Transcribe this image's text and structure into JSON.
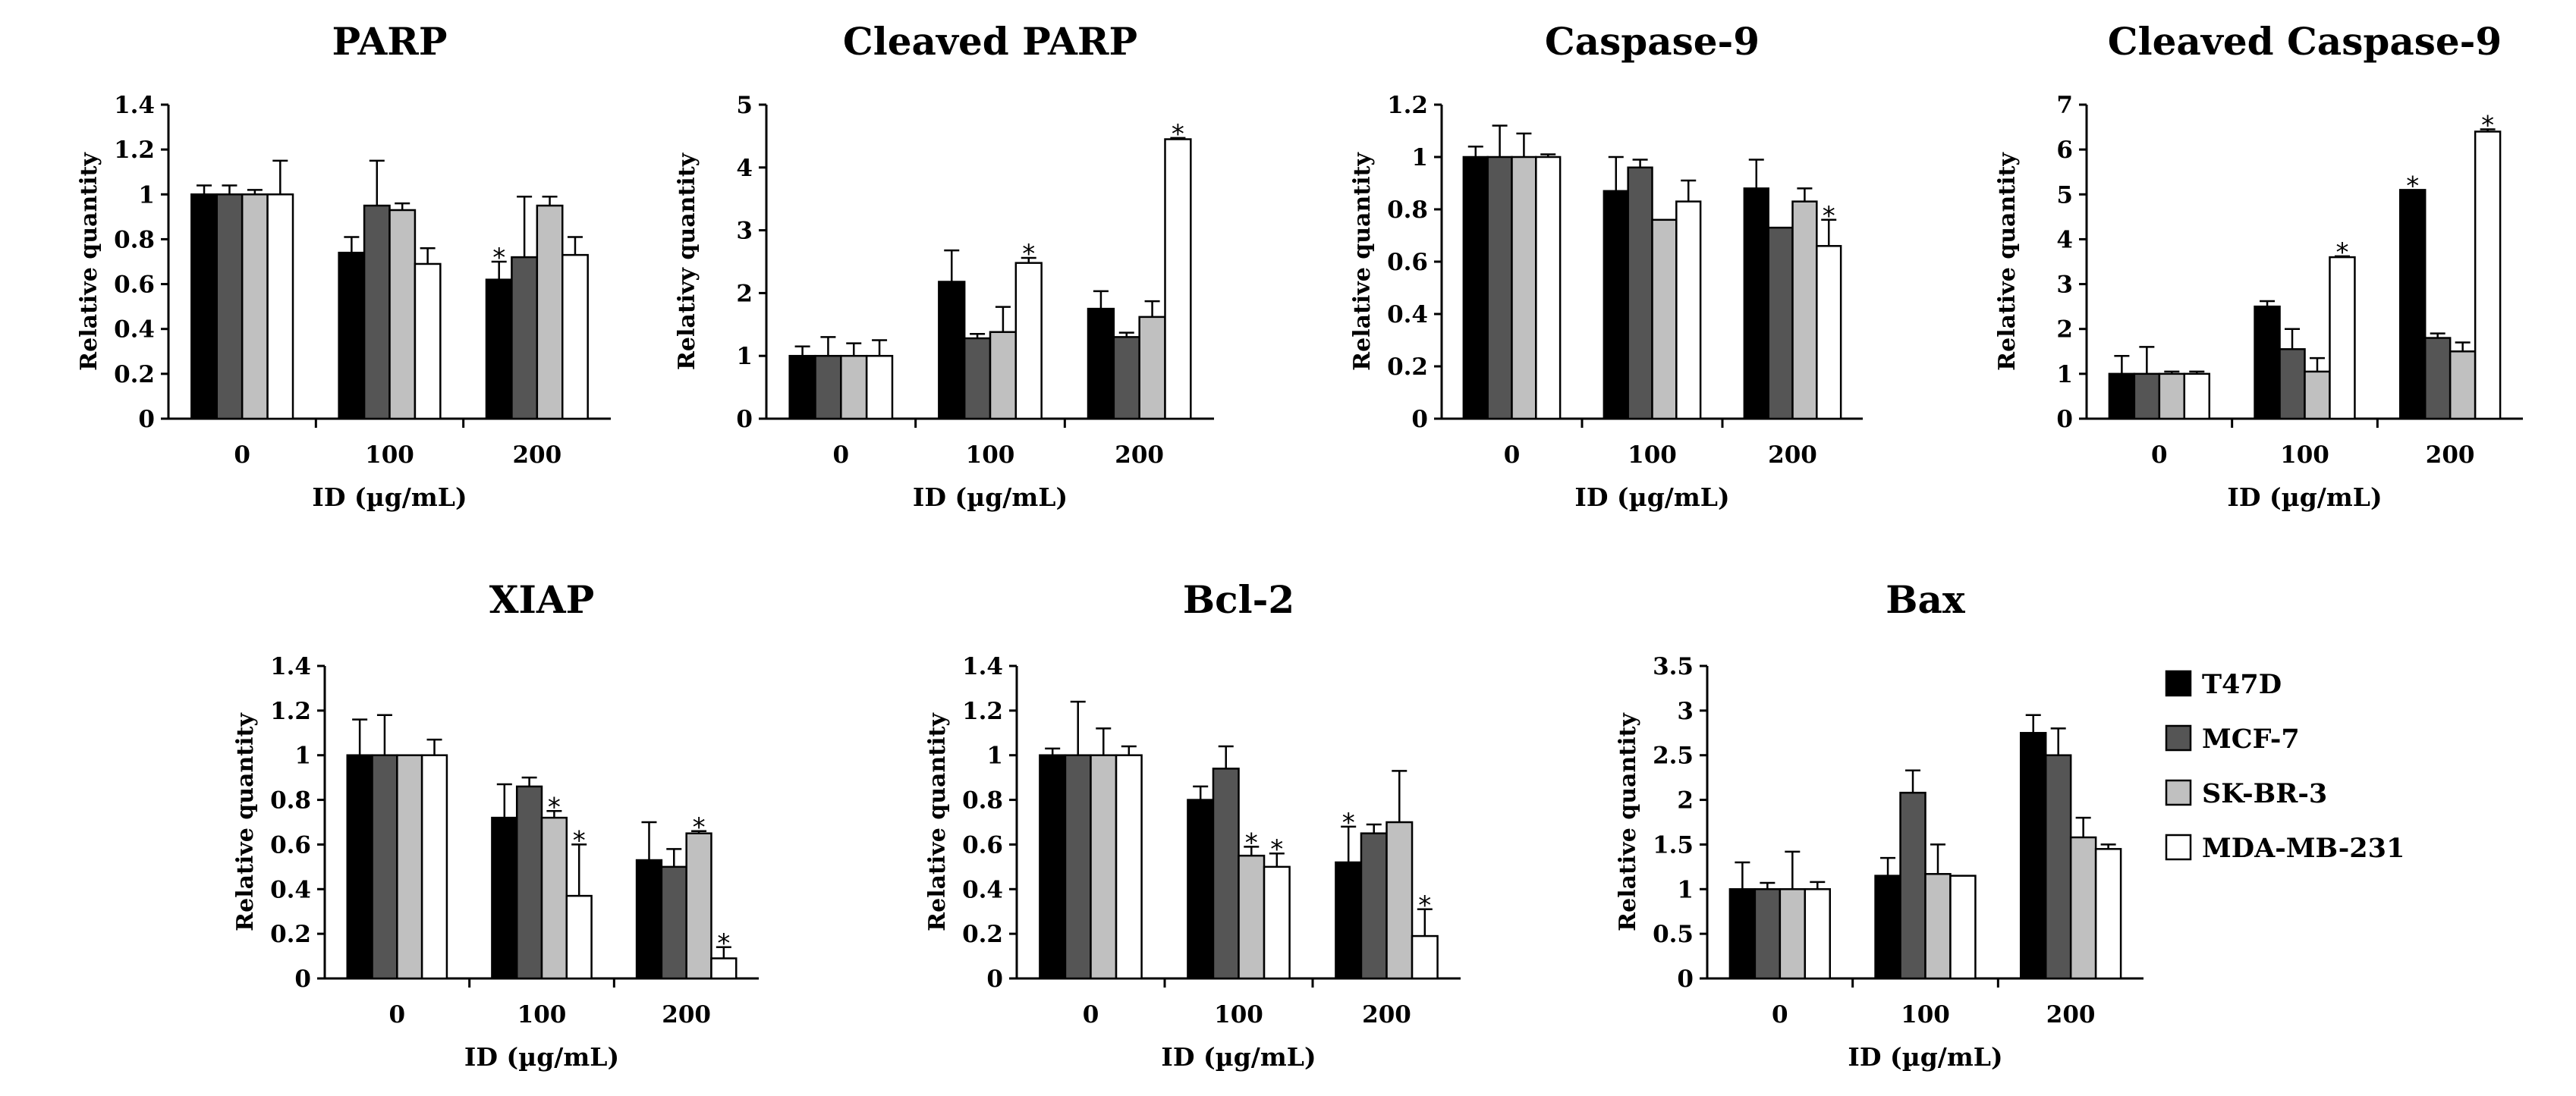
{
  "legend": [
    {
      "name": "T47D",
      "color": "#000000"
    },
    {
      "name": "MCF-7",
      "color": "#555555"
    },
    {
      "name": "SK-BR-3",
      "color": "#c0c0c0"
    },
    {
      "name": "MDA-MB-231",
      "color": "#ffffff"
    }
  ],
  "chart_data": [
    {
      "type": "bar",
      "title": "PARP",
      "xlabel": "ID (µg/mL)",
      "ylabel": "Relative quantity",
      "categories": [
        "0",
        "100",
        "200"
      ],
      "ylim": [
        0,
        1.4
      ],
      "yticks": [
        "0",
        "0.2",
        "0.4",
        "0.6",
        "0.8",
        "1",
        "1.2",
        "1.4"
      ],
      "series": [
        {
          "name": "T47D",
          "values": [
            1.0,
            0.74,
            0.62
          ],
          "errors": [
            0.04,
            0.07,
            0.08
          ],
          "sig": [
            false,
            false,
            true
          ]
        },
        {
          "name": "MCF-7",
          "values": [
            1.0,
            0.95,
            0.72
          ],
          "errors": [
            0.04,
            0.2,
            0.27
          ],
          "sig": [
            false,
            false,
            false
          ]
        },
        {
          "name": "SK-BR-3",
          "values": [
            1.0,
            0.93,
            0.95
          ],
          "errors": [
            0.02,
            0.03,
            0.04
          ],
          "sig": [
            false,
            false,
            false
          ]
        },
        {
          "name": "MDA-MB-231",
          "values": [
            1.0,
            0.69,
            0.73
          ],
          "errors": [
            0.15,
            0.07,
            0.08
          ],
          "sig": [
            false,
            false,
            false
          ]
        }
      ]
    },
    {
      "type": "bar",
      "title": "Cleaved PARP",
      "xlabel": "ID (µg/mL)",
      "ylabel": "Relativy quantity",
      "categories": [
        "0",
        "100",
        "200"
      ],
      "ylim": [
        0,
        5
      ],
      "yticks": [
        "0",
        "1",
        "2",
        "3",
        "4",
        "5"
      ],
      "series": [
        {
          "name": "T47D",
          "values": [
            1.0,
            2.18,
            1.75
          ],
          "errors": [
            0.15,
            0.5,
            0.28
          ],
          "sig": [
            false,
            false,
            false
          ]
        },
        {
          "name": "MCF-7",
          "values": [
            1.0,
            1.28,
            1.3
          ],
          "errors": [
            0.3,
            0.07,
            0.07
          ],
          "sig": [
            false,
            false,
            false
          ]
        },
        {
          "name": "SK-BR-3",
          "values": [
            1.0,
            1.38,
            1.62
          ],
          "errors": [
            0.2,
            0.4,
            0.25
          ],
          "sig": [
            false,
            false,
            false
          ]
        },
        {
          "name": "MDA-MB-231",
          "values": [
            1.0,
            2.48,
            4.45
          ],
          "errors": [
            0.25,
            0.08,
            0.02
          ],
          "sig": [
            false,
            true,
            true
          ]
        }
      ]
    },
    {
      "type": "bar",
      "title": "Caspase-9",
      "xlabel": "ID (µg/mL)",
      "ylabel": "Relative quantity",
      "categories": [
        "0",
        "100",
        "200"
      ],
      "ylim": [
        0,
        1.2
      ],
      "yticks": [
        "0",
        "0.2",
        "0.4",
        "0.6",
        "0.8",
        "1",
        "1.2"
      ],
      "series": [
        {
          "name": "T47D",
          "values": [
            1.0,
            0.87,
            0.88
          ],
          "errors": [
            0.04,
            0.13,
            0.11
          ],
          "sig": [
            false,
            false,
            false
          ]
        },
        {
          "name": "MCF-7",
          "values": [
            1.0,
            0.96,
            0.73
          ],
          "errors": [
            0.12,
            0.03,
            0.0
          ],
          "sig": [
            false,
            false,
            false
          ]
        },
        {
          "name": "SK-BR-3",
          "values": [
            1.0,
            0.76,
            0.83
          ],
          "errors": [
            0.09,
            0.0,
            0.05
          ],
          "sig": [
            false,
            false,
            false
          ]
        },
        {
          "name": "MDA-MB-231",
          "values": [
            1.0,
            0.83,
            0.66
          ],
          "errors": [
            0.01,
            0.08,
            0.1
          ],
          "sig": [
            false,
            false,
            true
          ]
        }
      ]
    },
    {
      "type": "bar",
      "title": "Cleaved Caspase-9",
      "xlabel": "ID (µg/mL)",
      "ylabel": "Relative quantity",
      "categories": [
        "0",
        "100",
        "200"
      ],
      "ylim": [
        0,
        7
      ],
      "yticks": [
        "0",
        "1",
        "2",
        "3",
        "4",
        "5",
        "6",
        "7"
      ],
      "series": [
        {
          "name": "T47D",
          "values": [
            1.0,
            2.5,
            5.1
          ],
          "errors": [
            0.4,
            0.12,
            0.0
          ],
          "sig": [
            false,
            false,
            true
          ]
        },
        {
          "name": "MCF-7",
          "values": [
            1.0,
            1.55,
            1.8
          ],
          "errors": [
            0.6,
            0.45,
            0.1
          ],
          "sig": [
            false,
            false,
            false
          ]
        },
        {
          "name": "SK-BR-3",
          "values": [
            1.0,
            1.05,
            1.5
          ],
          "errors": [
            0.05,
            0.3,
            0.2
          ],
          "sig": [
            false,
            false,
            false
          ]
        },
        {
          "name": "MDA-MB-231",
          "values": [
            1.0,
            3.6,
            6.4
          ],
          "errors": [
            0.05,
            0.02,
            0.05
          ],
          "sig": [
            false,
            true,
            true
          ]
        }
      ]
    },
    {
      "type": "bar",
      "title": "XIAP",
      "xlabel": "ID (µg/mL)",
      "ylabel": "Relative quantity",
      "categories": [
        "0",
        "100",
        "200"
      ],
      "ylim": [
        0,
        1.4
      ],
      "yticks": [
        "0",
        "0.2",
        "0.4",
        "0.6",
        "0.8",
        "1",
        "1.2",
        "1.4"
      ],
      "series": [
        {
          "name": "T47D",
          "values": [
            1.0,
            0.72,
            0.53
          ],
          "errors": [
            0.16,
            0.15,
            0.17
          ],
          "sig": [
            false,
            false,
            false
          ]
        },
        {
          "name": "MCF-7",
          "values": [
            1.0,
            0.86,
            0.5
          ],
          "errors": [
            0.18,
            0.04,
            0.08
          ],
          "sig": [
            false,
            false,
            false
          ]
        },
        {
          "name": "SK-BR-3",
          "values": [
            1.0,
            0.72,
            0.65
          ],
          "errors": [
            0.0,
            0.03,
            0.01
          ],
          "sig": [
            false,
            true,
            true
          ]
        },
        {
          "name": "MDA-MB-231",
          "values": [
            1.0,
            0.37,
            0.09
          ],
          "errors": [
            0.07,
            0.23,
            0.05
          ],
          "sig": [
            false,
            true,
            true
          ]
        }
      ]
    },
    {
      "type": "bar",
      "title": "Bcl-2",
      "xlabel": "ID (µg/mL)",
      "ylabel": "Relative quantity",
      "categories": [
        "0",
        "100",
        "200"
      ],
      "ylim": [
        0,
        1.4
      ],
      "yticks": [
        "0",
        "0.2",
        "0.4",
        "0.6",
        "0.8",
        "1",
        "1.2",
        "1.4"
      ],
      "series": [
        {
          "name": "T47D",
          "values": [
            1.0,
            0.8,
            0.52
          ],
          "errors": [
            0.03,
            0.06,
            0.16
          ],
          "sig": [
            false,
            false,
            true
          ]
        },
        {
          "name": "MCF-7",
          "values": [
            1.0,
            0.94,
            0.65
          ],
          "errors": [
            0.24,
            0.1,
            0.04
          ],
          "sig": [
            false,
            false,
            false
          ]
        },
        {
          "name": "SK-BR-3",
          "values": [
            1.0,
            0.55,
            0.7
          ],
          "errors": [
            0.12,
            0.04,
            0.23
          ],
          "sig": [
            false,
            true,
            false
          ]
        },
        {
          "name": "MDA-MB-231",
          "values": [
            1.0,
            0.5,
            0.19
          ],
          "errors": [
            0.04,
            0.06,
            0.12
          ],
          "sig": [
            false,
            true,
            true
          ]
        }
      ]
    },
    {
      "type": "bar",
      "title": "Bax",
      "xlabel": "ID (µg/mL)",
      "ylabel": "Relative quantity",
      "categories": [
        "0",
        "100",
        "200"
      ],
      "ylim": [
        0,
        3.5
      ],
      "yticks": [
        "0",
        "0.5",
        "1",
        "1.5",
        "2",
        "2.5",
        "3",
        "3.5"
      ],
      "series": [
        {
          "name": "T47D",
          "values": [
            1.0,
            1.15,
            2.75
          ],
          "errors": [
            0.3,
            0.2,
            0.2
          ],
          "sig": [
            false,
            false,
            false
          ]
        },
        {
          "name": "MCF-7",
          "values": [
            1.0,
            2.08,
            2.5
          ],
          "errors": [
            0.07,
            0.25,
            0.3
          ],
          "sig": [
            false,
            false,
            false
          ]
        },
        {
          "name": "SK-BR-3",
          "values": [
            1.0,
            1.17,
            1.58
          ],
          "errors": [
            0.42,
            0.33,
            0.22
          ],
          "sig": [
            false,
            false,
            false
          ]
        },
        {
          "name": "MDA-MB-231",
          "values": [
            1.0,
            1.15,
            1.45
          ],
          "errors": [
            0.08,
            0.0,
            0.05
          ],
          "sig": [
            false,
            false,
            false
          ]
        }
      ]
    }
  ]
}
